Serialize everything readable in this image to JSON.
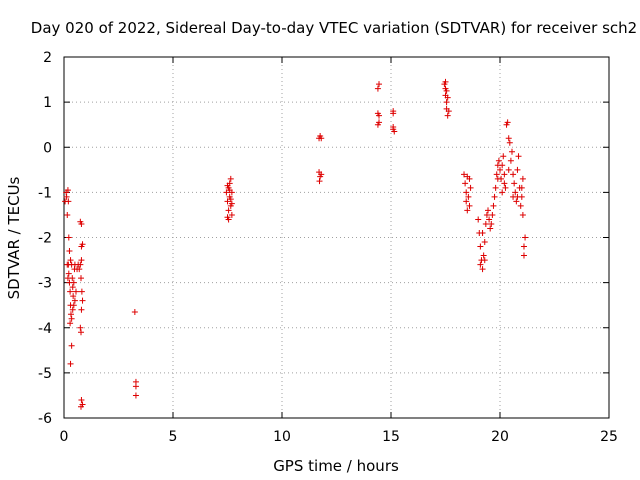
{
  "chart_data": {
    "type": "scatter",
    "title": "Day 020 of 2022, Sidereal Day-to-day VTEC variation (SDTVAR) for receiver sch2",
    "xlabel": "GPS time / hours",
    "ylabel": "SDTVAR / TECUs",
    "xlim": [
      0,
      25
    ],
    "ylim": [
      -6,
      2
    ],
    "xticks": [
      0,
      5,
      10,
      15,
      20,
      25
    ],
    "yticks": [
      -6,
      -5,
      -4,
      -3,
      -2,
      -1,
      0,
      1,
      2
    ],
    "grid": true,
    "marker": "+",
    "color": "#dd0000",
    "series": [
      {
        "name": "SDTVAR",
        "points": [
          [
            0.05,
            -1.2
          ],
          [
            0.1,
            -1.0
          ],
          [
            0.12,
            -1.1
          ],
          [
            0.15,
            -1.5
          ],
          [
            0.18,
            -0.95
          ],
          [
            0.2,
            -1.2
          ],
          [
            0.22,
            -2.0
          ],
          [
            0.25,
            -2.3
          ],
          [
            0.2,
            -2.6
          ],
          [
            0.22,
            -2.8
          ],
          [
            0.25,
            -3.0
          ],
          [
            0.28,
            -3.2
          ],
          [
            0.3,
            -3.5
          ],
          [
            0.32,
            -3.7
          ],
          [
            0.28,
            -3.9
          ],
          [
            0.35,
            -4.4
          ],
          [
            0.3,
            -4.8
          ],
          [
            0.35,
            -2.6
          ],
          [
            0.38,
            -2.9
          ],
          [
            0.4,
            -3.1
          ],
          [
            0.42,
            -3.3
          ],
          [
            0.45,
            -3.5
          ],
          [
            0.4,
            -3.6
          ],
          [
            0.48,
            -2.7
          ],
          [
            0.5,
            -2.6
          ],
          [
            0.45,
            -3.0
          ],
          [
            0.55,
            -3.2
          ],
          [
            0.6,
            -2.7
          ],
          [
            0.65,
            -2.6
          ],
          [
            0.7,
            -2.7
          ],
          [
            0.75,
            -2.6
          ],
          [
            0.8,
            -2.5
          ],
          [
            0.78,
            -2.9
          ],
          [
            0.82,
            -3.2
          ],
          [
            0.85,
            -3.4
          ],
          [
            0.8,
            -3.6
          ],
          [
            0.75,
            -4.0
          ],
          [
            0.78,
            -4.1
          ],
          [
            0.8,
            -1.7
          ],
          [
            0.75,
            -1.65
          ],
          [
            0.8,
            -2.2
          ],
          [
            0.85,
            -2.15
          ],
          [
            0.8,
            -5.6
          ],
          [
            0.78,
            -5.75
          ],
          [
            0.85,
            -5.7
          ],
          [
            0.3,
            -2.5
          ],
          [
            0.35,
            -3.8
          ],
          [
            0.15,
            -2.6
          ],
          [
            0.18,
            -2.9
          ],
          [
            0.5,
            -3.4
          ],
          [
            3.25,
            -3.65
          ],
          [
            3.3,
            -5.2
          ],
          [
            3.3,
            -5.3
          ],
          [
            3.3,
            -5.5
          ],
          [
            7.45,
            -1.0
          ],
          [
            7.5,
            -1.2
          ],
          [
            7.55,
            -0.9
          ],
          [
            7.55,
            -1.4
          ],
          [
            7.6,
            -1.1
          ],
          [
            7.6,
            -0.8
          ],
          [
            7.65,
            -1.3
          ],
          [
            7.65,
            -0.7
          ],
          [
            7.7,
            -1.0
          ],
          [
            7.7,
            -1.5
          ],
          [
            7.5,
            -1.55
          ],
          [
            7.55,
            -1.6
          ],
          [
            7.6,
            -0.95
          ],
          [
            7.65,
            -1.15
          ],
          [
            7.7,
            -1.25
          ],
          [
            7.5,
            -0.85
          ],
          [
            11.7,
            0.2
          ],
          [
            11.75,
            0.25
          ],
          [
            11.8,
            0.2
          ],
          [
            11.7,
            -0.55
          ],
          [
            11.75,
            -0.65
          ],
          [
            11.72,
            -0.75
          ],
          [
            11.8,
            -0.6
          ],
          [
            14.4,
            1.3
          ],
          [
            14.45,
            1.4
          ],
          [
            14.4,
            0.75
          ],
          [
            14.45,
            0.7
          ],
          [
            14.4,
            0.5
          ],
          [
            14.45,
            0.55
          ],
          [
            15.1,
            0.75
          ],
          [
            15.1,
            0.8
          ],
          [
            15.1,
            0.4
          ],
          [
            15.15,
            0.35
          ],
          [
            15.1,
            0.45
          ],
          [
            17.45,
            1.4
          ],
          [
            17.5,
            1.3
          ],
          [
            17.5,
            1.15
          ],
          [
            17.55,
            1.0
          ],
          [
            17.55,
            0.85
          ],
          [
            17.6,
            0.7
          ],
          [
            17.6,
            1.1
          ],
          [
            17.65,
            0.8
          ],
          [
            17.5,
            1.45
          ],
          [
            17.55,
            1.25
          ],
          [
            18.35,
            -0.6
          ],
          [
            18.4,
            -0.8
          ],
          [
            18.45,
            -1.0
          ],
          [
            18.45,
            -1.2
          ],
          [
            18.5,
            -1.4
          ],
          [
            18.55,
            -1.1
          ],
          [
            18.6,
            -0.7
          ],
          [
            18.6,
            -1.3
          ],
          [
            18.65,
            -0.9
          ],
          [
            18.5,
            -0.65
          ],
          [
            19.0,
            -1.6
          ],
          [
            19.05,
            -1.9
          ],
          [
            19.1,
            -2.2
          ],
          [
            19.15,
            -2.5
          ],
          [
            19.2,
            -2.7
          ],
          [
            19.25,
            -2.4
          ],
          [
            19.3,
            -2.1
          ],
          [
            19.35,
            -1.7
          ],
          [
            19.4,
            -1.5
          ],
          [
            19.45,
            -1.4
          ],
          [
            19.5,
            -1.6
          ],
          [
            19.55,
            -1.8
          ],
          [
            19.6,
            -1.7
          ],
          [
            19.65,
            -1.5
          ],
          [
            19.7,
            -1.3
          ],
          [
            19.75,
            -1.1
          ],
          [
            19.8,
            -0.9
          ],
          [
            19.85,
            -0.6
          ],
          [
            19.9,
            -0.4
          ],
          [
            19.95,
            -0.3
          ],
          [
            20.0,
            -0.5
          ],
          [
            20.05,
            -0.7
          ],
          [
            20.1,
            -0.4
          ],
          [
            20.15,
            -0.2
          ],
          [
            20.2,
            -0.6
          ],
          [
            20.25,
            -0.9
          ],
          [
            20.3,
            0.5
          ],
          [
            20.35,
            0.55
          ],
          [
            20.4,
            0.2
          ],
          [
            20.45,
            0.1
          ],
          [
            20.5,
            -0.3
          ],
          [
            20.55,
            -0.1
          ],
          [
            20.6,
            -0.6
          ],
          [
            20.65,
            -0.8
          ],
          [
            20.7,
            -1.0
          ],
          [
            20.75,
            -1.2
          ],
          [
            20.8,
            -0.5
          ],
          [
            20.85,
            -0.2
          ],
          [
            20.9,
            -0.9
          ],
          [
            20.95,
            -1.3
          ],
          [
            21.0,
            -1.1
          ],
          [
            21.05,
            -1.5
          ],
          [
            21.1,
            -2.2
          ],
          [
            21.1,
            -2.4
          ],
          [
            21.15,
            -2.0
          ],
          [
            21.0,
            -0.9
          ],
          [
            19.1,
            -2.6
          ],
          [
            19.2,
            -1.9
          ],
          [
            19.3,
            -2.5
          ],
          [
            20.2,
            -0.8
          ],
          [
            20.1,
            -1.0
          ],
          [
            19.9,
            -0.7
          ],
          [
            20.4,
            -0.5
          ],
          [
            20.6,
            -1.1
          ],
          [
            20.8,
            -1.1
          ],
          [
            21.05,
            -0.7
          ]
        ]
      }
    ]
  }
}
